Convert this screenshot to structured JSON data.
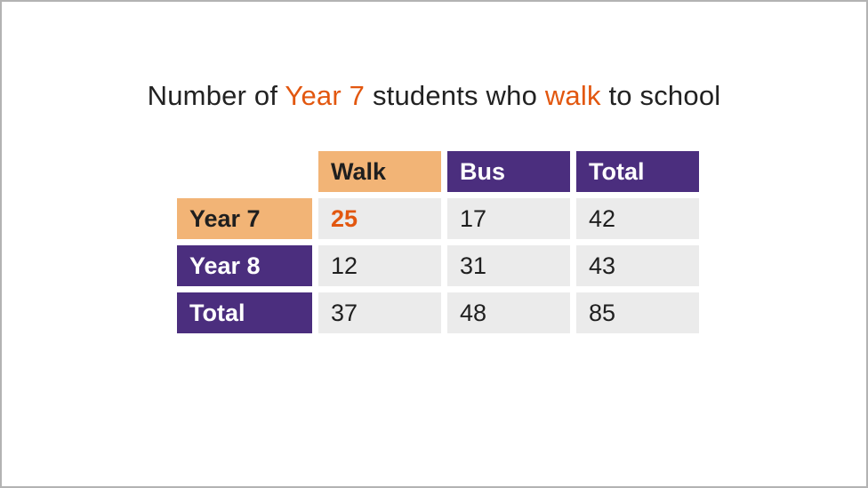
{
  "colors": {
    "orange_header_bg": "#f2b476",
    "purple_header_bg": "#4b2e7e",
    "data_cell_bg": "#ebebeb",
    "highlight_text": "#e2570f",
    "body_text": "#222222",
    "canvas_border": "#b3b3b3"
  },
  "title": {
    "full_text": "Number of Year 7 students who walk to school",
    "segments": [
      {
        "text": "Number of ",
        "highlight": false
      },
      {
        "text": "Year 7",
        "highlight": true
      },
      {
        "text": " students who ",
        "highlight": false
      },
      {
        "text": "walk",
        "highlight": true
      },
      {
        "text": " to school",
        "highlight": false
      }
    ]
  },
  "table": {
    "col_headers": [
      {
        "label": "Walk",
        "style": "orange"
      },
      {
        "label": "Bus",
        "style": "purple"
      },
      {
        "label": "Total",
        "style": "purple"
      }
    ],
    "rows": [
      {
        "header": "Year 7",
        "header_style": "orange",
        "cells": [
          {
            "value": "25",
            "highlight": true
          },
          {
            "value": "17",
            "highlight": false
          },
          {
            "value": "42",
            "highlight": false
          }
        ]
      },
      {
        "header": "Year 8",
        "header_style": "purple",
        "cells": [
          {
            "value": "12",
            "highlight": false
          },
          {
            "value": "31",
            "highlight": false
          },
          {
            "value": "43",
            "highlight": false
          }
        ]
      },
      {
        "header": "Total",
        "header_style": "purple",
        "cells": [
          {
            "value": "37",
            "highlight": false
          },
          {
            "value": "48",
            "highlight": false
          },
          {
            "value": "85",
            "highlight": false
          }
        ]
      }
    ]
  },
  "chart_data": {
    "type": "table",
    "title": "Number of Year 7 students who walk to school",
    "column_headers": [
      "Walk",
      "Bus",
      "Total"
    ],
    "row_headers": [
      "Year 7",
      "Year 8",
      "Total"
    ],
    "rows": [
      [
        25,
        17,
        42
      ],
      [
        12,
        31,
        43
      ],
      [
        37,
        48,
        85
      ]
    ],
    "highlighted_cell": {
      "row": "Year 7",
      "column": "Walk",
      "value": 25
    },
    "highlighted_headers": [
      "Year 7",
      "Walk"
    ]
  }
}
